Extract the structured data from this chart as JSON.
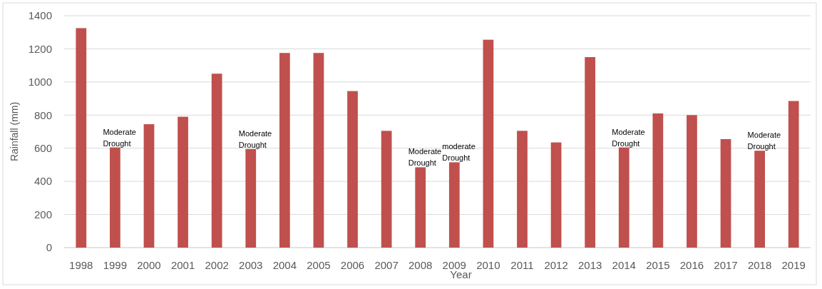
{
  "chart_data": {
    "type": "bar",
    "xlabel": "Year",
    "ylabel": "Rainfall (mm)",
    "categories": [
      "1998",
      "1999",
      "2000",
      "2001",
      "2002",
      "2003",
      "2004",
      "2005",
      "2006",
      "2007",
      "2008",
      "2009",
      "2010",
      "2011",
      "2012",
      "2013",
      "2014",
      "2015",
      "2016",
      "2017",
      "2018",
      "2019"
    ],
    "values": [
      1325,
      605,
      745,
      790,
      1050,
      595,
      1175,
      1175,
      945,
      705,
      485,
      515,
      1255,
      705,
      635,
      1150,
      605,
      810,
      800,
      655,
      585,
      885
    ],
    "color": "#c0504d",
    "ylim": [
      0,
      1400
    ],
    "yticks": [
      0,
      200,
      400,
      600,
      800,
      1000,
      1200,
      1400
    ],
    "grid": "y",
    "annotations": [
      {
        "text": "Moderate Drought",
        "x": "1999",
        "y": 605
      },
      {
        "text": "Moderate Drought",
        "x": "2003",
        "y": 595
      },
      {
        "text": "Moderate Drought",
        "x": "2008",
        "y": 485
      },
      {
        "text": "moderate Drought",
        "x": "2009",
        "y": 515
      },
      {
        "text": "Moderate Drought",
        "x": "2014",
        "y": 605
      },
      {
        "text": "Moderate Drought",
        "x": "2018",
        "y": 585
      }
    ]
  }
}
